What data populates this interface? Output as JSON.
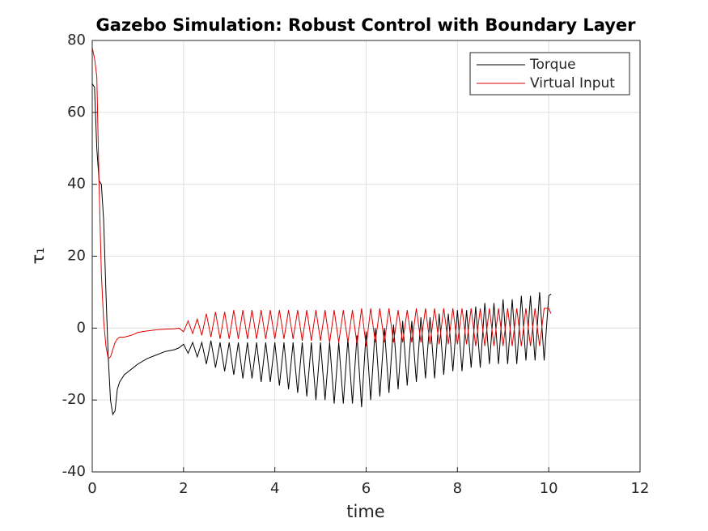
{
  "chart_data": {
    "type": "line",
    "title": "Gazebo Simulation: Robust Control with Boundary Layer",
    "xlabel": "time",
    "ylabel": "τ₁",
    "x": [
      0,
      0.05,
      0.1,
      0.15,
      0.2,
      0.25,
      0.3,
      0.35,
      0.4,
      0.45,
      0.5,
      0.55,
      0.6,
      0.7,
      0.8,
      0.9,
      1.0,
      1.2,
      1.4,
      1.6,
      1.8,
      1.9,
      2.0,
      2.1,
      2.2,
      2.3,
      2.4,
      2.5,
      2.6,
      2.7,
      2.8,
      2.9,
      3.0,
      3.1,
      3.2,
      3.3,
      3.4,
      3.5,
      3.6,
      3.7,
      3.8,
      3.9,
      4.0,
      4.1,
      4.2,
      4.3,
      4.4,
      4.5,
      4.6,
      4.7,
      4.8,
      4.9,
      5.0,
      5.1,
      5.2,
      5.3,
      5.4,
      5.5,
      5.6,
      5.7,
      5.8,
      5.9,
      6.0,
      6.1,
      6.2,
      6.3,
      6.4,
      6.5,
      6.6,
      6.7,
      6.8,
      6.9,
      7.0,
      7.1,
      7.2,
      7.3,
      7.4,
      7.5,
      7.6,
      7.7,
      7.8,
      7.9,
      8.0,
      8.1,
      8.2,
      8.3,
      8.4,
      8.5,
      8.6,
      8.7,
      8.8,
      8.9,
      9.0,
      9.1,
      9.2,
      9.3,
      9.4,
      9.5,
      9.6,
      9.7,
      9.8,
      9.9,
      10.0,
      10.05
    ],
    "series": [
      {
        "name": "Torque",
        "color": "#000000",
        "values": [
          68,
          67,
          50,
          41,
          40,
          30,
          10,
          -8,
          -20,
          -24,
          -23,
          -17,
          -15,
          -13,
          -12,
          -11,
          -10,
          -8.5,
          -7.5,
          -6.5,
          -6,
          -5.5,
          -4.5,
          -7,
          -4,
          -8,
          -4,
          -10,
          -3.5,
          -11,
          -4,
          -12,
          -4,
          -13,
          -4,
          -14,
          -4,
          -14,
          -4,
          -15,
          -4,
          -15,
          -4,
          -16,
          -4,
          -17,
          -4,
          -18,
          -4,
          -19,
          -4,
          -20,
          -4,
          -20,
          -4,
          -21,
          -4,
          -21,
          -3,
          -21,
          -2,
          -22,
          -1,
          -20,
          0,
          -19,
          0,
          -18,
          1,
          -17,
          2,
          -16,
          2,
          -15,
          3,
          -14,
          3,
          -14,
          4,
          -13,
          4,
          -12,
          5,
          -12,
          5,
          -11,
          6,
          -11,
          7,
          -10,
          7,
          -10,
          8,
          -10,
          8,
          -10,
          9,
          -9,
          9,
          -9,
          10,
          -9,
          9,
          9.5
        ]
      },
      {
        "name": "Virtual Input",
        "color": "#e00000",
        "values": [
          78,
          75,
          70,
          40,
          15,
          2,
          -5,
          -8.5,
          -8,
          -6,
          -4,
          -3,
          -2.5,
          -2.5,
          -2.2,
          -1.8,
          -1.2,
          -0.8,
          -0.5,
          -0.3,
          -0.2,
          0,
          -1,
          2,
          -1.5,
          2.5,
          -2,
          4,
          -2.5,
          4.5,
          -3,
          4.5,
          -3,
          5,
          -3,
          5,
          -3,
          5,
          -3,
          5,
          -3,
          5,
          -3,
          5,
          -3,
          5,
          -3,
          5,
          -3.5,
          5,
          -3.5,
          5,
          -3.5,
          5,
          -4,
          5,
          -4,
          5,
          -4,
          5,
          -4.5,
          5.5,
          -5,
          5.5,
          -4,
          5.5,
          -4,
          5.5,
          -4,
          5,
          -4,
          5,
          -4,
          5.5,
          -4,
          5.5,
          -4.5,
          5.5,
          -4.5,
          5.5,
          -4.5,
          5.5,
          -4.5,
          5.5,
          -4.5,
          5.5,
          -5,
          5.5,
          -5,
          5.5,
          -5,
          5.5,
          -5,
          5.5,
          -5,
          5.5,
          -5,
          5.5,
          -5,
          5.5,
          -5,
          5.5,
          5.5,
          4
        ]
      }
    ],
    "xlim": [
      0,
      12
    ],
    "xticks": [
      0,
      2,
      4,
      6,
      8,
      10,
      12
    ],
    "ylim": [
      -40,
      80
    ],
    "yticks": [
      -40,
      -20,
      0,
      20,
      40,
      60,
      80
    ],
    "grid": true,
    "legend": "northeast"
  }
}
